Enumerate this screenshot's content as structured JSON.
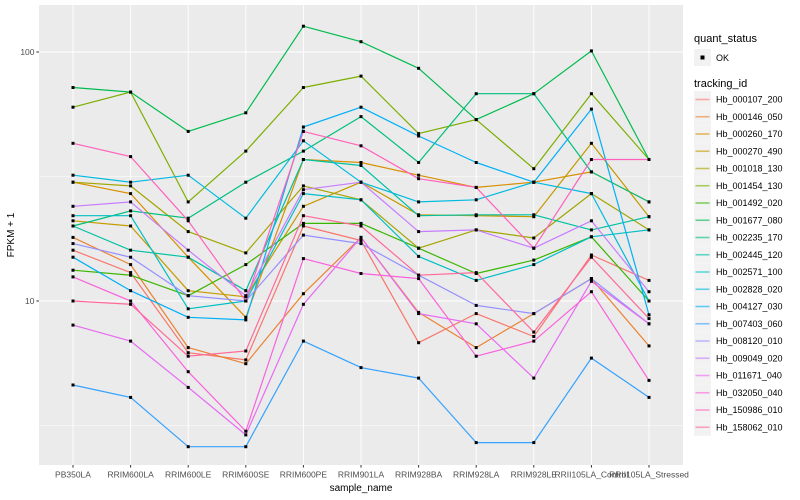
{
  "chart": {
    "y_axis_label": "FPKM + 1",
    "x_axis_label": "sample_name",
    "y_tick_labels": [
      "100",
      "10"
    ],
    "legend_quant_title": "quant_status",
    "legend_quant_ok_label": "OK",
    "legend_tracking_title": "tracking_id"
  },
  "chart_data": {
    "type": "line",
    "title": "",
    "xlabel": "sample_name",
    "ylabel": "FPKM + 1",
    "y_scale": "log10",
    "y_major_ticks": [
      10,
      100
    ],
    "y_minor_gridlines": [
      3.162,
      31.623
    ],
    "ylim": [
      2.1,
      150
    ],
    "grid": "on",
    "panel_bg": "#EBEBEB",
    "grid_color": "#FFFFFF",
    "legend_position": "right",
    "point_marker": {
      "shape": "square",
      "color": "#000000",
      "meaning": "quant_status OK"
    },
    "categories": [
      "PB350LA",
      "RRIM600LA",
      "RRIM600LE",
      "RRIM600SE",
      "RRIM600PE",
      "RRIM901LA",
      "RRIM928BA",
      "RRIM928LA",
      "RRIM928LE",
      "RRII105LA_Control",
      "RRII105LA_Stressed"
    ],
    "series": [
      {
        "name": "Hb_000107_200",
        "color": "#F8766D",
        "values": [
          16,
          13,
          6.2,
          5.8,
          20,
          17.5,
          6.8,
          8.9,
          7.2,
          15.3,
          12.1
        ]
      },
      {
        "name": "Hb_000146_050",
        "color": "#EA8331",
        "values": [
          18,
          14,
          6.5,
          5.6,
          10.7,
          18,
          9,
          6.5,
          8.9,
          12.3,
          6.6
        ]
      },
      {
        "name": "Hb_000260_170",
        "color": "#D89000",
        "values": [
          30,
          27,
          15,
          8.6,
          37,
          36,
          32,
          28.6,
          30,
          33,
          25
        ]
      },
      {
        "name": "Hb_000270_490",
        "color": "#C49A00",
        "values": [
          21,
          20,
          11,
          10.4,
          24,
          30,
          22.2,
          22,
          21.8,
          43,
          21.8
        ]
      },
      {
        "name": "Hb_001018_130",
        "color": "#A3A500",
        "values": [
          30,
          29,
          19,
          15.6,
          29,
          25.5,
          16.3,
          19.3,
          17.9,
          27,
          19.3
        ]
      },
      {
        "name": "Hb_001454_130",
        "color": "#7CAE00",
        "values": [
          60,
          69,
          25,
          40,
          72,
          80,
          47,
          53.5,
          34,
          68,
          37
        ]
      },
      {
        "name": "Hb_001492_020",
        "color": "#39B600",
        "values": [
          13.3,
          12.7,
          10.5,
          14,
          20.5,
          20.5,
          16.3,
          12.9,
          14.6,
          18.1,
          10
        ]
      },
      {
        "name": "Hb_001677_080",
        "color": "#00BB4E",
        "values": [
          72,
          69,
          48,
          57,
          127,
          110,
          86,
          53.5,
          68,
          101,
          37
        ]
      },
      {
        "name": "Hb_002235_170",
        "color": "#00BF7D",
        "values": [
          20,
          23,
          21.5,
          30,
          40,
          55,
          36,
          68,
          68,
          33,
          25
        ]
      },
      {
        "name": "Hb_002445_120",
        "color": "#00C1A3",
        "values": [
          20,
          16,
          15,
          11,
          37,
          35,
          22,
          22.2,
          22.2,
          19.3,
          21.8
        ]
      },
      {
        "name": "Hb_002571_100",
        "color": "#00BFC4",
        "values": [
          22,
          22,
          9.3,
          10,
          27,
          25.5,
          15.1,
          12.1,
          14,
          18.1,
          19.3
        ]
      },
      {
        "name": "Hb_002828_020",
        "color": "#00BAE0",
        "values": [
          32,
          30,
          32,
          21.5,
          44,
          30,
          25,
          25.5,
          30,
          27,
          10
        ]
      },
      {
        "name": "Hb_004127_030",
        "color": "#00B0F6",
        "values": [
          15,
          11,
          8.6,
          8.4,
          50,
          60,
          46,
          36,
          30,
          59,
          8.8
        ]
      },
      {
        "name": "Hb_007403_060",
        "color": "#35A2FF",
        "values": [
          4.6,
          4.1,
          2.6,
          2.6,
          6.9,
          5.4,
          4.9,
          2.7,
          2.7,
          5.9,
          4.1
        ]
      },
      {
        "name": "Hb_008120_010",
        "color": "#9590FF",
        "values": [
          17,
          15,
          10.5,
          10,
          18.4,
          17,
          12.7,
          9.6,
          8.9,
          12.3,
          8.1
        ]
      },
      {
        "name": "Hb_009049_020",
        "color": "#C77CFF",
        "values": [
          24,
          25,
          16,
          10.5,
          28,
          30,
          19,
          19.3,
          16.3,
          21,
          10.9
        ]
      },
      {
        "name": "Hb_011671_040",
        "color": "#E76BF3",
        "values": [
          8,
          6.9,
          4.5,
          2.9,
          9.7,
          18,
          8.9,
          8.1,
          4.9,
          12,
          8.1
        ]
      },
      {
        "name": "Hb_032050_040",
        "color": "#FA62DB",
        "values": [
          12.5,
          10,
          5.2,
          3,
          14.8,
          12.9,
          12.3,
          6,
          6.9,
          10.9,
          4.8
        ]
      },
      {
        "name": "Hb_150986_010",
        "color": "#FF62BC",
        "values": [
          43,
          38,
          21,
          10,
          48,
          42,
          31,
          28.6,
          16.3,
          37,
          37
        ]
      },
      {
        "name": "Hb_158062_010",
        "color": "#FF6A98",
        "values": [
          10,
          9.7,
          6,
          6.3,
          22,
          20,
          12.7,
          13,
          7.5,
          15,
          8.5
        ]
      }
    ]
  }
}
